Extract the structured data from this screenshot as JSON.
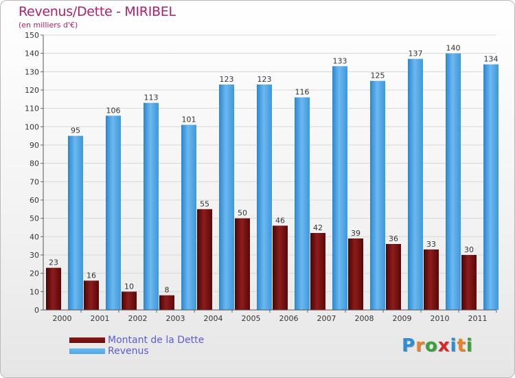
{
  "header": {
    "title": "Revenus/Dette - MIRIBEL",
    "subtitle": "(en milliers d'€)"
  },
  "legend": {
    "items": [
      {
        "label": "Montant de la Dette",
        "color": "#6b0b0b"
      },
      {
        "label": "Revenus",
        "color": "#4da6e8"
      }
    ]
  },
  "logo": {
    "text": "Proxiti",
    "letter_colors": [
      "#2a8fd6",
      "#e8822a",
      "#3aa13a",
      "#d62a2a",
      "#2a8fd6",
      "#e8822a",
      "#3aa13a"
    ]
  },
  "chart_data": {
    "type": "bar",
    "title": "Revenus/Dette - MIRIBEL",
    "ylabel": "(en milliers d'€)",
    "xlabel": "",
    "categories": [
      "2000",
      "2001",
      "2002",
      "2003",
      "2004",
      "2005",
      "2006",
      "2007",
      "2008",
      "2009",
      "2010",
      "2011"
    ],
    "series": [
      {
        "name": "Montant de la Dette",
        "color": "#6b0b0b",
        "values": [
          23,
          16,
          10,
          8,
          55,
          50,
          46,
          42,
          39,
          36,
          33,
          30
        ]
      },
      {
        "name": "Revenus",
        "color": "#4da6e8",
        "values": [
          95,
          106,
          113,
          101,
          123,
          123,
          116,
          133,
          125,
          137,
          140,
          134
        ]
      }
    ],
    "ylim": [
      0,
      150
    ],
    "ytick_step": 10,
    "grid": true,
    "legend_position": "bottom-left"
  }
}
